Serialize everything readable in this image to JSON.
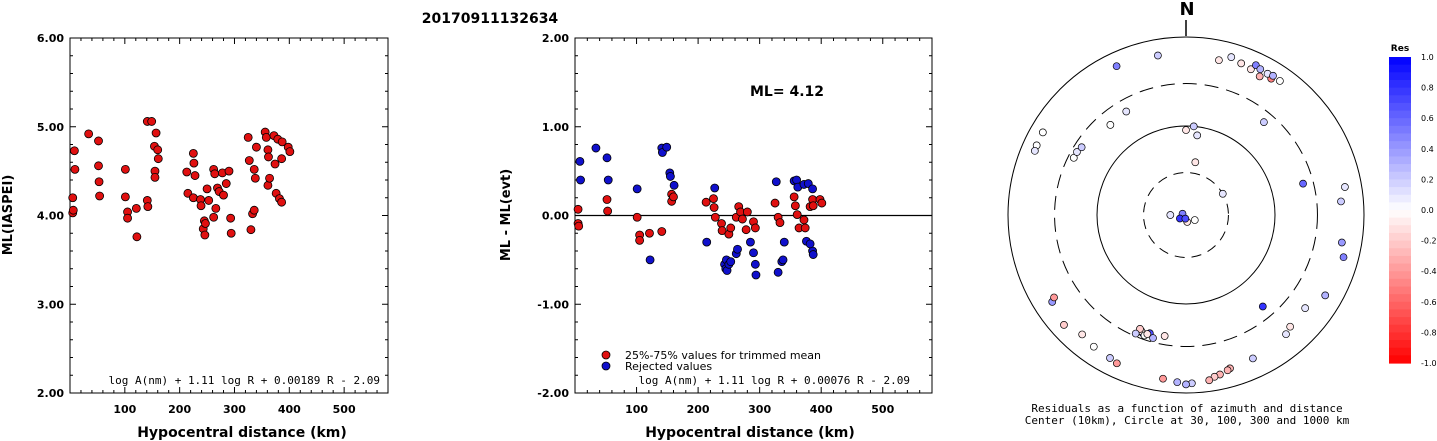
{
  "title": "20170911132634",
  "chart_data": [
    {
      "type": "scatter",
      "ylabel": "ML(IASPEI)",
      "xlabel": "Hypocentral distance (km)",
      "xlim": [
        0,
        580
      ],
      "ylim": [
        2.0,
        6.0
      ],
      "x_ticks": [
        "100",
        "200",
        "300",
        "400",
        "500"
      ],
      "y_ticks": [
        "2.00",
        "3.00",
        "4.00",
        "5.00",
        "6.00"
      ],
      "formula": "log A(nm) + 1.11 log R + 0.00189 R - 2.09",
      "series": [
        {
          "color": "#e01010",
          "points": [
            [
              5,
              4.2
            ],
            [
              5,
              4.03
            ],
            [
              6,
              4.06
            ],
            [
              8,
              4.73
            ],
            [
              9,
              4.52
            ],
            [
              34,
              4.92
            ],
            [
              52,
              4.84
            ],
            [
              52,
              4.56
            ],
            [
              53,
              4.38
            ],
            [
              54,
              4.22
            ],
            [
              101,
              4.52
            ],
            [
              101,
              4.21
            ],
            [
              105,
              4.04
            ],
            [
              105,
              3.97
            ],
            [
              121,
              4.08
            ],
            [
              122,
              3.76
            ],
            [
              141,
              5.06
            ],
            [
              141,
              4.17
            ],
            [
              142,
              4.1
            ],
            [
              149,
              5.06
            ],
            [
              154,
              4.78
            ],
            [
              155,
              4.5
            ],
            [
              155,
              4.43
            ],
            [
              157,
              4.93
            ],
            [
              160,
              4.74
            ],
            [
              161,
              4.64
            ],
            [
              213,
              4.49
            ],
            [
              215,
              4.25
            ],
            [
              225,
              4.7
            ],
            [
              226,
              4.59
            ],
            [
              228,
              4.45
            ],
            [
              225,
              4.2
            ],
            [
              238,
              4.18
            ],
            [
              239,
              4.11
            ],
            [
              243,
              3.85
            ],
            [
              245,
              3.94
            ],
            [
              246,
              3.78
            ],
            [
              247,
              3.91
            ],
            [
              250,
              4.3
            ],
            [
              253,
              4.17
            ],
            [
              262,
              4.52
            ],
            [
              264,
              4.47
            ],
            [
              262,
              3.98
            ],
            [
              266,
              4.08
            ],
            [
              269,
              4.31
            ],
            [
              272,
              4.27
            ],
            [
              278,
              4.48
            ],
            [
              280,
              4.23
            ],
            [
              285,
              4.36
            ],
            [
              290,
              4.5
            ],
            [
              293,
              3.97
            ],
            [
              294,
              3.8
            ],
            [
              325,
              4.88
            ],
            [
              327,
              4.62
            ],
            [
              330,
              3.84
            ],
            [
              333,
              4.02
            ],
            [
              336,
              4.06
            ],
            [
              336,
              4.52
            ],
            [
              338,
              4.42
            ],
            [
              340,
              4.77
            ],
            [
              356,
              4.94
            ],
            [
              358,
              4.88
            ],
            [
              361,
              4.74
            ],
            [
              362,
              4.66
            ],
            [
              361,
              4.34
            ],
            [
              364,
              4.42
            ],
            [
              372,
              4.9
            ],
            [
              374,
              4.58
            ],
            [
              376,
              4.25
            ],
            [
              379,
              4.86
            ],
            [
              382,
              4.19
            ],
            [
              386,
              4.15
            ],
            [
              386,
              4.64
            ],
            [
              387,
              4.83
            ],
            [
              398,
              4.77
            ],
            [
              401,
              4.72
            ]
          ]
        }
      ]
    },
    {
      "type": "scatter",
      "ylabel": "ML - ML(evt)",
      "xlabel": "Hypocentral distance (km)",
      "xlim": [
        0,
        580
      ],
      "ylim": [
        -2.0,
        2.0
      ],
      "x_ticks": [
        "100",
        "200",
        "300",
        "400",
        "500"
      ],
      "y_ticks": [
        "-2.00",
        "-1.00",
        "0.00",
        "1.00",
        "2.00"
      ],
      "annotation": "ML= 4.12",
      "formula": "log A(nm) + 1.11 log R + 0.00076 R - 2.09",
      "legend": [
        {
          "label": "25%-75% values for trimmed mean",
          "color": "#e01010"
        },
        {
          "label": "Rejected values",
          "color": "#1010cc"
        }
      ],
      "series": [
        {
          "name": "25%-75% values for trimmed mean",
          "color": "#e01010",
          "points": [
            [
              5,
              0.07
            ],
            [
              5,
              -0.09
            ],
            [
              6,
              -0.12
            ],
            [
              52,
              0.18
            ],
            [
              53,
              0.05
            ],
            [
              101,
              -0.02
            ],
            [
              105,
              -0.22
            ],
            [
              105,
              -0.28
            ],
            [
              121,
              -0.2
            ],
            [
              141,
              -0.18
            ],
            [
              157,
              0.16
            ],
            [
              157,
              0.24
            ],
            [
              160,
              0.21
            ],
            [
              213,
              0.15
            ],
            [
              225,
              0.19
            ],
            [
              226,
              0.09
            ],
            [
              228,
              -0.02
            ],
            [
              238,
              -0.09
            ],
            [
              239,
              -0.17
            ],
            [
              250,
              -0.21
            ],
            [
              253,
              -0.14
            ],
            [
              262,
              -0.02
            ],
            [
              266,
              0.1
            ],
            [
              269,
              0.04
            ],
            [
              272,
              -0.04
            ],
            [
              278,
              -0.16
            ],
            [
              280,
              0.04
            ],
            [
              290,
              -0.07
            ],
            [
              293,
              -0.14
            ],
            [
              325,
              0.14
            ],
            [
              330,
              -0.02
            ],
            [
              333,
              -0.08
            ],
            [
              356,
              0.21
            ],
            [
              358,
              0.11
            ],
            [
              361,
              0.01
            ],
            [
              364,
              -0.14
            ],
            [
              372,
              -0.05
            ],
            [
              382,
              0.1
            ],
            [
              386,
              0.18
            ],
            [
              398,
              0.18
            ],
            [
              401,
              0.14
            ],
            [
              387,
              0.11
            ],
            [
              374,
              -0.14
            ]
          ]
        },
        {
          "name": "Rejected values",
          "color": "#1010cc",
          "points": [
            [
              8,
              0.61
            ],
            [
              9,
              0.4
            ],
            [
              34,
              0.76
            ],
            [
              52,
              0.65
            ],
            [
              54,
              0.4
            ],
            [
              101,
              0.3
            ],
            [
              122,
              -0.5
            ],
            [
              141,
              0.76
            ],
            [
              142,
              0.71
            ],
            [
              149,
              0.77
            ],
            [
              154,
              0.48
            ],
            [
              155,
              0.44
            ],
            [
              161,
              0.34
            ],
            [
              214,
              -0.3
            ],
            [
              227,
              0.31
            ],
            [
              243,
              -0.55
            ],
            [
              245,
              -0.6
            ],
            [
              246,
              -0.5
            ],
            [
              247,
              -0.62
            ],
            [
              250,
              -0.55
            ],
            [
              253,
              -0.52
            ],
            [
              262,
              -0.43
            ],
            [
              264,
              -0.38
            ],
            [
              285,
              -0.3
            ],
            [
              290,
              -0.42
            ],
            [
              293,
              -0.55
            ],
            [
              294,
              -0.67
            ],
            [
              327,
              0.38
            ],
            [
              330,
              -0.64
            ],
            [
              336,
              -0.52
            ],
            [
              338,
              -0.5
            ],
            [
              340,
              -0.3
            ],
            [
              356,
              0.39
            ],
            [
              360,
              0.4
            ],
            [
              362,
              0.32
            ],
            [
              372,
              0.35
            ],
            [
              376,
              -0.29
            ],
            [
              379,
              0.36
            ],
            [
              386,
              0.3
            ],
            [
              386,
              -0.4
            ],
            [
              387,
              -0.44
            ],
            [
              382,
              -0.32
            ]
          ]
        }
      ]
    },
    {
      "type": "scatter",
      "subtype": "polar residual map",
      "north_label": "N",
      "caption_line1": "Residuals as a function of azimuth and distance",
      "caption_line2": "Center (10km), Circle at 30, 100, 300 and 1000 km",
      "colorbar_title": "Res",
      "colorbar_ticks": [
        "1.0",
        "0.8",
        "0.6",
        "0.4",
        "0.2",
        "0.0",
        "-0.2",
        "-0.4",
        "-0.6",
        "-0.8",
        "-1.0"
      ],
      "colorbar_range": [
        -1.0,
        1.0
      ],
      "colors": {
        "positive": "#0000ff",
        "zero": "#ffffff",
        "negative": "#ff0000"
      },
      "points": [
        [
          200,
          0.6
        ],
        [
          200,
          1.0
        ],
        [
          201,
          -0.1
        ],
        [
          199,
          0.0
        ],
        [
          202,
          -0.2
        ],
        [
          197,
          0.7
        ],
        [
          203,
          0.2
        ],
        [
          198,
          -0.1
        ],
        [
          75,
          0.6
        ],
        [
          140,
          0.8
        ],
        [
          320,
          0.0
        ],
        [
          330,
          0.1
        ],
        [
          40,
          0.2
        ],
        [
          270,
          0.1
        ],
        [
          290,
          0.5
        ],
        [
          240,
          0.8
        ],
        [
          120,
          0.0
        ],
        [
          170,
          -0.1
        ],
        [
          190,
          0.7
        ],
        [
          60,
          0.1
        ],
        [
          10,
          -0.1
        ],
        [
          0,
          -0.1
        ],
        [
          5,
          0.2
        ],
        [
          8,
          0.1
        ],
        [
          12,
          -0.1
        ],
        [
          16,
          0.1
        ],
        [
          20,
          -0.1
        ],
        [
          24,
          -0.1
        ],
        [
          28,
          -0.3
        ],
        [
          32,
          -0.5
        ],
        [
          350,
          0.2
        ],
        [
          335,
          0.5
        ],
        [
          25,
          0.5
        ],
        [
          27,
          0.3
        ],
        [
          30,
          0.1
        ],
        [
          32,
          0.3
        ],
        [
          35,
          0.0
        ],
        [
          300,
          0.0
        ],
        [
          295,
          0.0
        ],
        [
          293,
          0.1
        ],
        [
          80,
          0.1
        ],
        [
          85,
          0.2
        ],
        [
          100,
          0.4
        ],
        [
          105,
          0.5
        ],
        [
          120,
          0.3
        ],
        [
          128,
          0.1
        ],
        [
          137,
          -0.1
        ],
        [
          140,
          0.1
        ],
        [
          155,
          0.2
        ],
        [
          164,
          -0.3
        ],
        [
          165,
          -0.3
        ],
        [
          168,
          -0.3
        ],
        [
          170,
          -0.2
        ],
        [
          172,
          -0.3
        ],
        [
          178,
          0.2
        ],
        [
          180,
          0.3
        ],
        [
          183,
          0.3
        ],
        [
          188,
          -0.4
        ],
        [
          205,
          -0.4
        ],
        [
          208,
          0.2
        ],
        [
          215,
          0.0
        ],
        [
          221,
          -0.1
        ],
        [
          228,
          -0.2
        ],
        [
          237,
          0.4
        ],
        [
          238,
          -0.4
        ],
        [
          297,
          0.0
        ],
        [
          300,
          0.1
        ],
        [
          303,
          0.2
        ],
        [
          195,
          0.3
        ],
        [
          190,
          -0.1
        ]
      ]
    }
  ]
}
